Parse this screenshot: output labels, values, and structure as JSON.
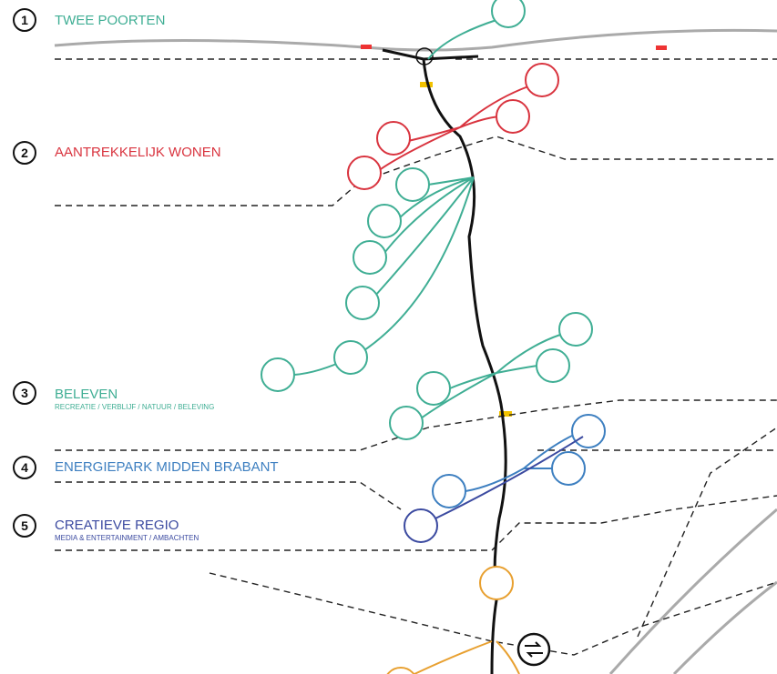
{
  "items": [
    {
      "number": "1",
      "title": "TWEE POORTEN"
    },
    {
      "number": "2",
      "title": "AANTREKKELIJK WONEN"
    },
    {
      "number": "3",
      "title": "BELEVEN",
      "subtitle": "RECREATIE / VERBLIJF / NATUUR / BELEVING"
    },
    {
      "number": "4",
      "title": "ENERGIEPARK MIDDEN BRABANT"
    },
    {
      "number": "5",
      "title": "CREATIEVE REGIO",
      "subtitle": "MEDIA & ENTERTAINMENT / AMBACHTEN"
    }
  ]
}
